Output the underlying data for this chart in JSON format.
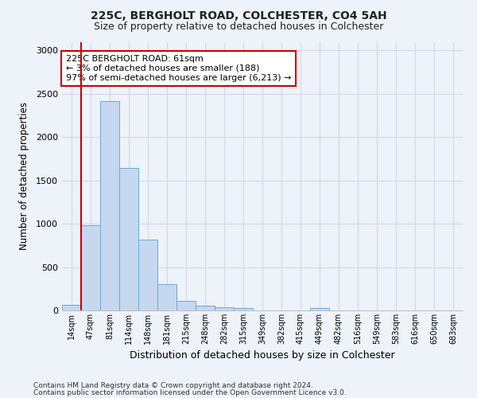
{
  "title1": "225C, BERGHOLT ROAD, COLCHESTER, CO4 5AH",
  "title2": "Size of property relative to detached houses in Colchester",
  "xlabel": "Distribution of detached houses by size in Colchester",
  "ylabel": "Number of detached properties",
  "footnote1": "Contains HM Land Registry data © Crown copyright and database right 2024.",
  "footnote2": "Contains public sector information licensed under the Open Government Licence v3.0.",
  "bin_labels": [
    "14sqm",
    "47sqm",
    "81sqm",
    "114sqm",
    "148sqm",
    "181sqm",
    "215sqm",
    "248sqm",
    "282sqm",
    "315sqm",
    "349sqm",
    "382sqm",
    "415sqm",
    "449sqm",
    "482sqm",
    "516sqm",
    "549sqm",
    "583sqm",
    "616sqm",
    "650sqm",
    "683sqm"
  ],
  "bar_values": [
    60,
    980,
    2420,
    1640,
    820,
    305,
    110,
    55,
    40,
    25,
    0,
    0,
    0,
    30,
    0,
    0,
    0,
    0,
    0,
    0,
    0
  ],
  "bar_color": "#c5d8f0",
  "bar_edgecolor": "#6aaad4",
  "grid_color": "#d0d8e8",
  "subject_line_color": "#cc0000",
  "annotation_text": "225C BERGHOLT ROAD: 61sqm\n← 3% of detached houses are smaller (188)\n97% of semi-detached houses are larger (6,213) →",
  "annotation_box_edgecolor": "#cc0000",
  "annotation_box_facecolor": "#ffffff",
  "ylim": [
    0,
    3100
  ],
  "yticks": [
    0,
    500,
    1000,
    1500,
    2000,
    2500,
    3000
  ],
  "background_color": "#eef2f9",
  "fig_width": 6.0,
  "fig_height": 5.0,
  "dpi": 100
}
